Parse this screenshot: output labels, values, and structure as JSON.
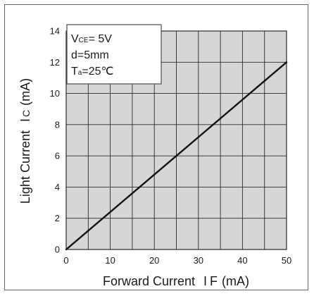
{
  "chart_data": {
    "type": "line",
    "title": "",
    "xlabel": "Forward Current",
    "xlabel_symbol": "I",
    "xlabel_symbol_sub": "F",
    "xlabel_unit": "(mA)",
    "ylabel": "Light Current",
    "ylabel_symbol": "I",
    "ylabel_symbol_sub": "C",
    "ylabel_unit": "(mA)",
    "xlim": [
      0,
      50
    ],
    "ylim": [
      0,
      14
    ],
    "xticks": [
      0,
      10,
      20,
      30,
      40,
      50
    ],
    "yticks": [
      0,
      2,
      4,
      6,
      8,
      10,
      12,
      14
    ],
    "x_minor_step": 5,
    "y_minor_step": 2,
    "grid": true,
    "plot_background": "#d6d6d6",
    "grid_color": "#2a2a2a",
    "line_color": "#111111",
    "series": [
      {
        "x": [
          0,
          50
        ],
        "y": [
          0,
          12
        ]
      }
    ],
    "legend": {
      "position": "top-left",
      "vce_main": "V",
      "vce_sub": "CE",
      "vce_value": "= 5V",
      "distance": "d=5mm",
      "ta_main": "T",
      "ta_sub": "a",
      "ta_value": "=25℃"
    }
  }
}
